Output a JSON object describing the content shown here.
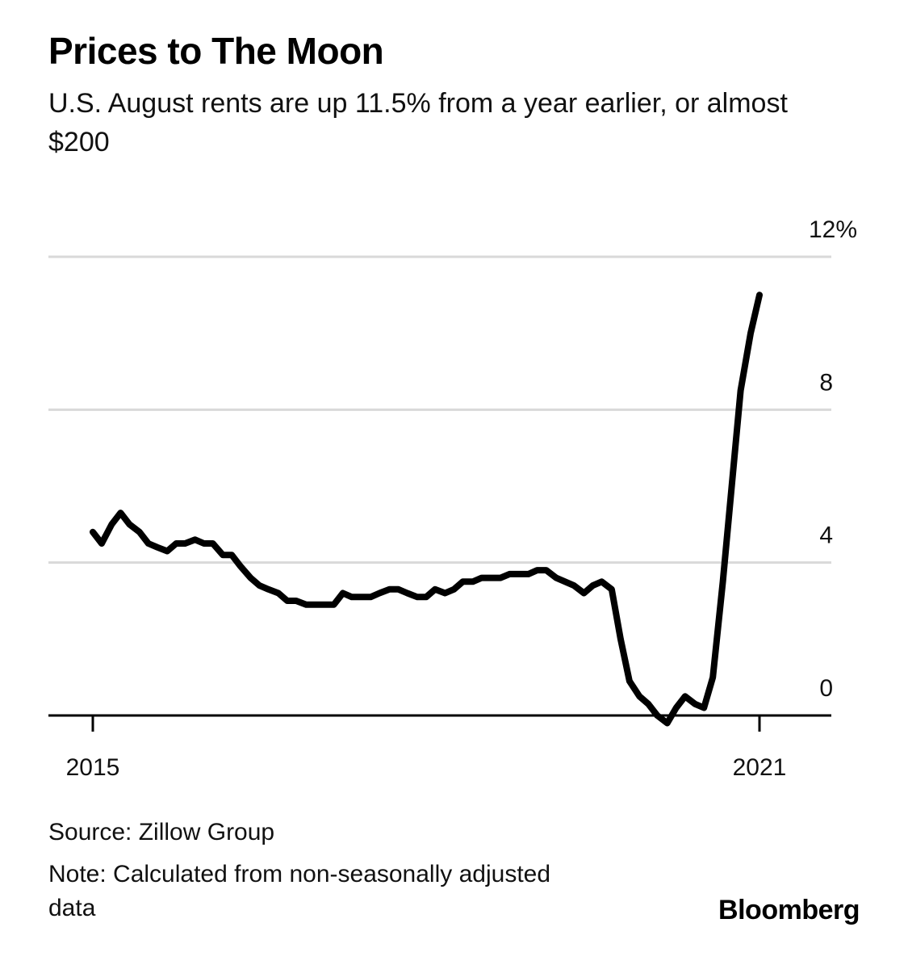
{
  "header": {
    "title": "Prices to The Moon",
    "subtitle": "U.S. August rents are up 11.5% from a year earlier, or almost $200"
  },
  "footer": {
    "source": "Source: Zillow Group",
    "note": "Note: Calculated from non-seasonally adjusted data",
    "brand": "Bloomberg"
  },
  "chart_data": {
    "type": "line",
    "title": "Prices to The Moon",
    "subtitle": "U.S. August rents are up 11.5% from a year earlier, or almost $200",
    "xlabel": "",
    "ylabel": "",
    "x_ticks": [
      "2015",
      "2021"
    ],
    "y_ticks": [
      "12%",
      "8",
      "4",
      "0"
    ],
    "y_tick_values": [
      12,
      8,
      4,
      0
    ],
    "ylim": [
      -0.8,
      12.2
    ],
    "xlim": [
      2014.6,
      2021.65
    ],
    "grid": true,
    "y_axis_side": "right",
    "series": [
      {
        "color": "#000000",
        "x": [
          2015.0,
          2015.08,
          2015.17,
          2015.25,
          2015.33,
          2015.42,
          2015.5,
          2015.58,
          2015.67,
          2015.75,
          2015.83,
          2015.92,
          2016.0,
          2016.08,
          2016.17,
          2016.25,
          2016.33,
          2016.42,
          2016.5,
          2016.58,
          2016.67,
          2016.75,
          2016.83,
          2016.92,
          2017.0,
          2017.08,
          2017.17,
          2017.25,
          2017.33,
          2017.42,
          2017.5,
          2017.58,
          2017.67,
          2017.75,
          2017.83,
          2017.92,
          2018.0,
          2018.08,
          2018.17,
          2018.25,
          2018.33,
          2018.42,
          2018.5,
          2018.58,
          2018.67,
          2018.75,
          2018.83,
          2018.92,
          2019.0,
          2019.08,
          2019.17,
          2019.25,
          2019.33,
          2019.42,
          2019.5,
          2019.58,
          2019.67,
          2019.75,
          2019.83,
          2019.92,
          2020.0,
          2020.08,
          2020.17,
          2020.25,
          2020.33,
          2020.42,
          2020.5,
          2020.58,
          2020.67,
          2020.75,
          2020.83,
          2020.92,
          2021.0
        ],
        "y": [
          4.8,
          4.5,
          5.0,
          5.3,
          5.0,
          4.8,
          4.5,
          4.4,
          4.3,
          4.5,
          4.5,
          4.6,
          4.5,
          4.5,
          4.2,
          4.2,
          3.9,
          3.6,
          3.4,
          3.3,
          3.2,
          3.0,
          3.0,
          2.9,
          2.9,
          2.9,
          2.9,
          3.2,
          3.1,
          3.1,
          3.1,
          3.2,
          3.3,
          3.3,
          3.2,
          3.1,
          3.1,
          3.3,
          3.2,
          3.3,
          3.5,
          3.5,
          3.6,
          3.6,
          3.6,
          3.7,
          3.7,
          3.7,
          3.8,
          3.8,
          3.6,
          3.5,
          3.4,
          3.2,
          3.4,
          3.5,
          3.3,
          2.0,
          0.9,
          0.5,
          0.3,
          0.0,
          -0.2,
          0.2,
          0.5,
          0.3,
          0.2,
          1.0,
          3.5,
          6.0,
          8.5,
          10.0,
          11.0
        ]
      }
    ]
  }
}
